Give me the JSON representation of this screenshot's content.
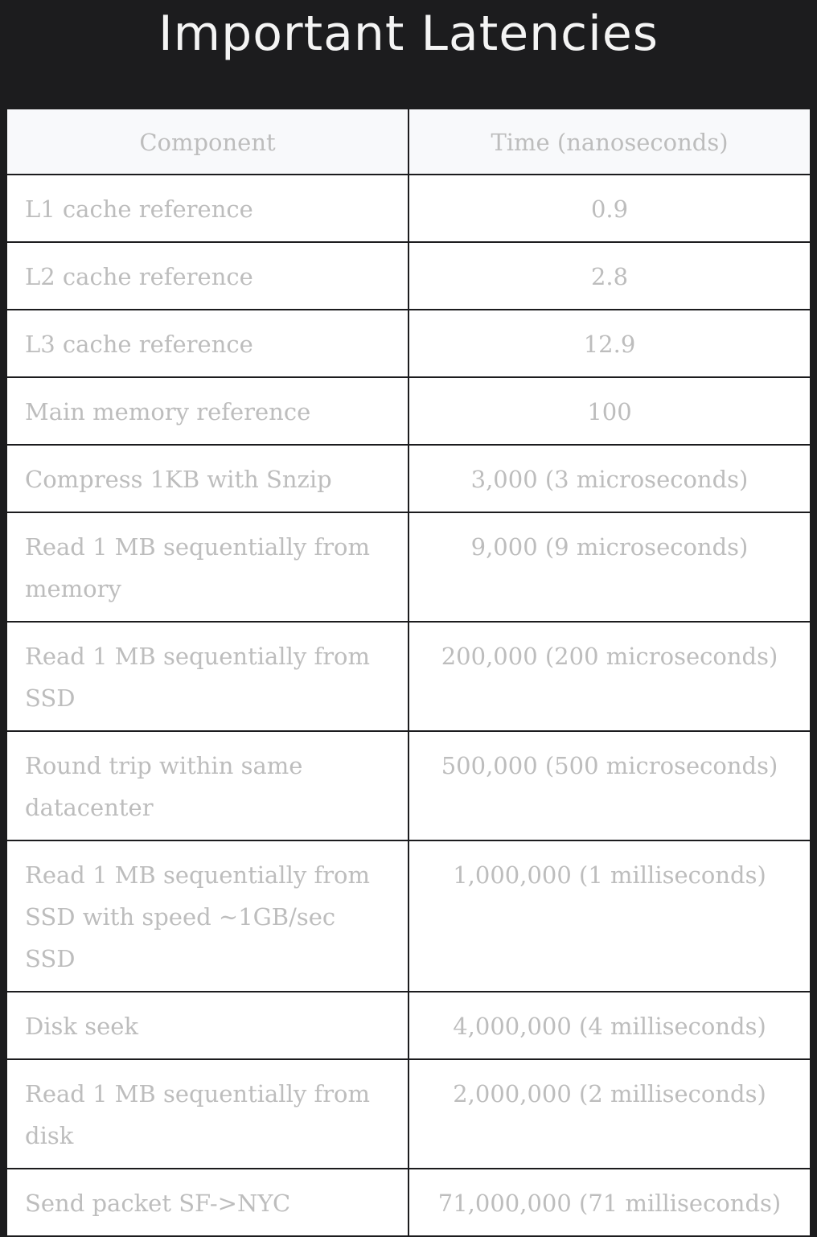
{
  "title": "Important Latencies",
  "table": {
    "headers": [
      "Component",
      "Time (nanoseconds)"
    ],
    "rows": [
      {
        "component": "L1 cache reference",
        "time": "0.9"
      },
      {
        "component": "L2 cache reference",
        "time": "2.8"
      },
      {
        "component": "L3 cache reference",
        "time": "12.9"
      },
      {
        "component": "Main memory reference",
        "time": "100"
      },
      {
        "component": "Compress 1KB with Snzip",
        "time": "3,000 (3 microseconds)"
      },
      {
        "component": "Read 1 MB sequentially from memory",
        "time": "9,000 (9 microseconds)"
      },
      {
        "component": "Read 1 MB sequentially from SSD",
        "time": "200,000 (200 microseconds)"
      },
      {
        "component": "Round trip within same datacenter",
        "time": "500,000 (500 microseconds)"
      },
      {
        "component": "Read 1 MB sequentially from SSD with speed ~1GB/sec SSD",
        "time": "1,000,000 (1 milliseconds)"
      },
      {
        "component": "Disk seek",
        "time": "4,000,000 (4 milliseconds)"
      },
      {
        "component": "Read 1 MB sequentially from disk",
        "time": "2,000,000 (2 milliseconds)"
      },
      {
        "component": "Send packet SF->NYC",
        "time": "71,000,000 (71 milliseconds)"
      }
    ]
  }
}
